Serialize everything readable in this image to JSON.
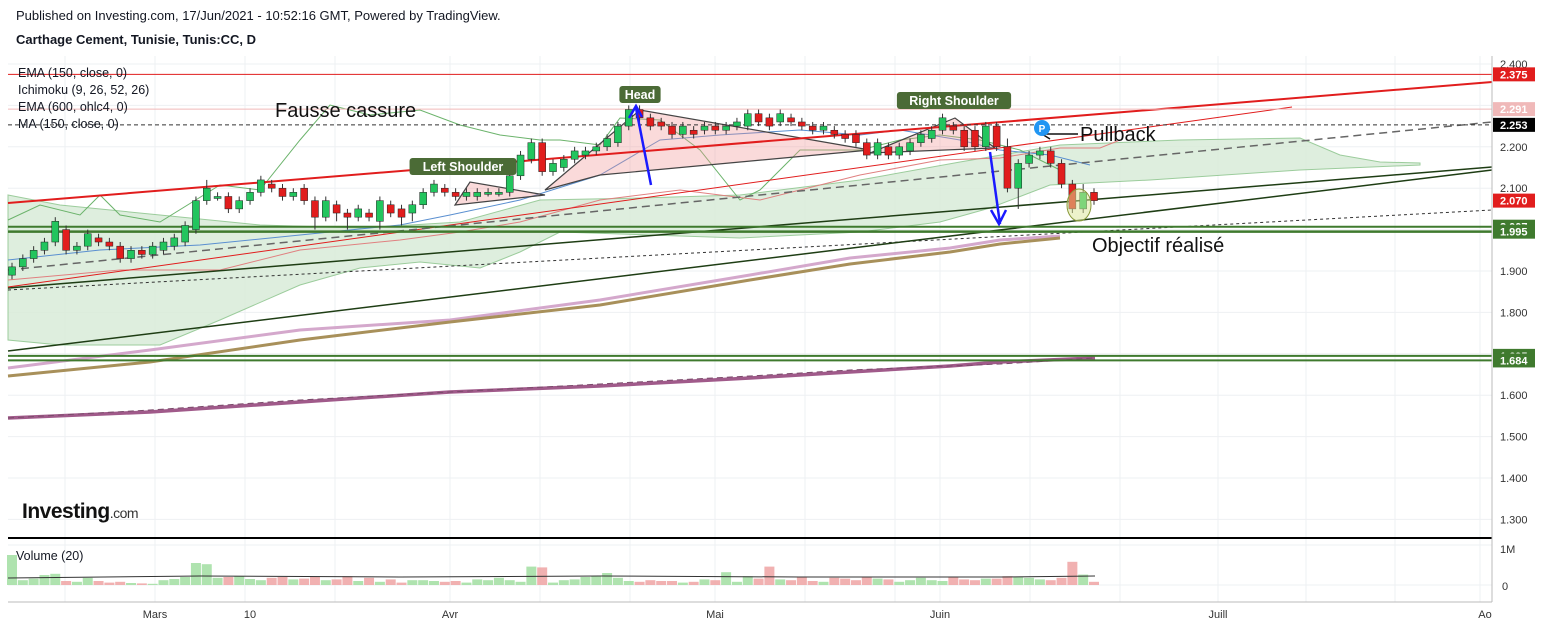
{
  "header": {
    "published": "Published on Investing.com, 17/Jun/2021 - 10:52:16 GMT, Powered by TradingView.",
    "symbol": "Carthage Cement, Tunisie, Tunis:CC, D"
  },
  "indicators": [
    "EMA (150, close, 0)",
    "Ichimoku (9, 26, 52, 26)",
    "EMA (600, ohlc4, 0)",
    "MA (150, close, 0)"
  ],
  "volume_label": "Volume (20)",
  "logo": {
    "main": "Investing",
    "suffix": ".com"
  },
  "annotations": {
    "fausse_cassure": "Fausse cassure",
    "left_shoulder": "Left Shoulder",
    "head": "Head",
    "right_shoulder": "Right Shoulder",
    "pullback": "Pullback",
    "objectif": "Objectif réalisé",
    "p_marker": "P"
  },
  "colors": {
    "up": "#22c55e",
    "down": "#e11d1d",
    "grid": "#eef0f3",
    "cloud": "#d9ecd9",
    "label_green": "#4b6b36",
    "hline_green": "#3f7a2e"
  },
  "chart_data": {
    "type": "candlestick",
    "ylim": [
      1.25,
      2.4
    ],
    "price_ticks": [
      "2.400",
      "2.200",
      "2.100",
      "1.900",
      "1.800",
      "1.600",
      "1.500",
      "1.400",
      "1.300"
    ],
    "volume_ticks": [
      "1M",
      "0"
    ],
    "x_labels": [
      "Mars",
      "10",
      "Avr",
      "Mai",
      "Juin",
      "Juill",
      "Ao"
    ],
    "price_labels": [
      {
        "text": "2.375",
        "value": 2.375,
        "color": "#e11d1d"
      },
      {
        "text": "2.291",
        "value": 2.291,
        "color": "#f0b9b9"
      },
      {
        "text": "2.253",
        "value": 2.253,
        "color": "#000000"
      },
      {
        "text": "2.070",
        "value": 2.07,
        "color": "#e11d1d"
      },
      {
        "text": "2.007",
        "value": 2.007,
        "color": "#3f7a2e"
      },
      {
        "text": "1.995",
        "value": 1.995,
        "color": "#3f7a2e"
      },
      {
        "text": "1.695",
        "value": 1.695,
        "color": "#3f7a2e"
      },
      {
        "text": "1.684",
        "value": 1.684,
        "color": "#3f7a2e"
      }
    ],
    "candles": [
      [
        1.89,
        1.91,
        1.88,
        1.92
      ],
      [
        1.91,
        1.93,
        1.9,
        1.94
      ],
      [
        1.93,
        1.95,
        1.92,
        1.96
      ],
      [
        1.95,
        1.97,
        1.94,
        1.98
      ],
      [
        1.97,
        2.02,
        1.96,
        2.03
      ],
      [
        2.0,
        1.95,
        1.94,
        2.01
      ],
      [
        1.95,
        1.96,
        1.94,
        1.97
      ],
      [
        1.96,
        1.99,
        1.95,
        2.0
      ],
      [
        1.98,
        1.97,
        1.96,
        1.99
      ],
      [
        1.97,
        1.96,
        1.95,
        1.98
      ],
      [
        1.96,
        1.93,
        1.92,
        1.97
      ],
      [
        1.93,
        1.95,
        1.92,
        1.96
      ],
      [
        1.95,
        1.94,
        1.93,
        1.96
      ],
      [
        1.94,
        1.96,
        1.93,
        1.97
      ],
      [
        1.95,
        1.97,
        1.94,
        1.98
      ],
      [
        1.96,
        1.98,
        1.95,
        1.99
      ],
      [
        1.97,
        2.01,
        1.96,
        2.02
      ],
      [
        2.0,
        2.07,
        1.99,
        2.08
      ],
      [
        2.07,
        2.1,
        2.06,
        2.12
      ],
      [
        2.08,
        2.08,
        2.07,
        2.09
      ],
      [
        2.08,
        2.05,
        2.04,
        2.09
      ],
      [
        2.05,
        2.07,
        2.04,
        2.08
      ],
      [
        2.07,
        2.09,
        2.06,
        2.1
      ],
      [
        2.09,
        2.12,
        2.08,
        2.13
      ],
      [
        2.11,
        2.1,
        2.09,
        2.12
      ],
      [
        2.1,
        2.08,
        2.07,
        2.11
      ],
      [
        2.08,
        2.09,
        2.07,
        2.1
      ],
      [
        2.1,
        2.07,
        2.06,
        2.11
      ],
      [
        2.07,
        2.03,
        2.0,
        2.08
      ],
      [
        2.03,
        2.07,
        2.02,
        2.08
      ],
      [
        2.06,
        2.04,
        2.02,
        2.07
      ],
      [
        2.04,
        2.03,
        2.0,
        2.05
      ],
      [
        2.03,
        2.05,
        2.02,
        2.06
      ],
      [
        2.04,
        2.03,
        2.02,
        2.05
      ],
      [
        2.02,
        2.07,
        2.0,
        2.08
      ],
      [
        2.06,
        2.04,
        2.03,
        2.07
      ],
      [
        2.05,
        2.03,
        2.01,
        2.06
      ],
      [
        2.04,
        2.06,
        2.02,
        2.07
      ],
      [
        2.06,
        2.09,
        2.05,
        2.1
      ],
      [
        2.09,
        2.11,
        2.08,
        2.12
      ],
      [
        2.1,
        2.09,
        2.08,
        2.11
      ],
      [
        2.09,
        2.08,
        2.07,
        2.1
      ],
      [
        2.08,
        2.09,
        2.07,
        2.1
      ],
      [
        2.08,
        2.09,
        2.07,
        2.1
      ],
      [
        2.09,
        2.09,
        2.08,
        2.1
      ],
      [
        2.09,
        2.09,
        2.08,
        2.1
      ],
      [
        2.09,
        2.13,
        2.08,
        2.14
      ],
      [
        2.13,
        2.18,
        2.12,
        2.19
      ],
      [
        2.17,
        2.21,
        2.16,
        2.22
      ],
      [
        2.21,
        2.14,
        2.13,
        2.22
      ],
      [
        2.14,
        2.16,
        2.13,
        2.17
      ],
      [
        2.15,
        2.17,
        2.14,
        2.18
      ],
      [
        2.17,
        2.19,
        2.16,
        2.2
      ],
      [
        2.18,
        2.19,
        2.17,
        2.2
      ],
      [
        2.19,
        2.2,
        2.18,
        2.21
      ],
      [
        2.2,
        2.22,
        2.19,
        2.23
      ],
      [
        2.21,
        2.25,
        2.2,
        2.26
      ],
      [
        2.25,
        2.29,
        2.24,
        2.3
      ],
      [
        2.29,
        2.27,
        2.26,
        2.3
      ],
      [
        2.27,
        2.25,
        2.24,
        2.28
      ],
      [
        2.26,
        2.25,
        2.24,
        2.27
      ],
      [
        2.25,
        2.23,
        2.22,
        2.26
      ],
      [
        2.23,
        2.25,
        2.22,
        2.26
      ],
      [
        2.24,
        2.23,
        2.22,
        2.25
      ],
      [
        2.24,
        2.25,
        2.23,
        2.26
      ],
      [
        2.25,
        2.24,
        2.23,
        2.26
      ],
      [
        2.24,
        2.25,
        2.23,
        2.26
      ],
      [
        2.25,
        2.26,
        2.24,
        2.27
      ],
      [
        2.25,
        2.28,
        2.24,
        2.29
      ],
      [
        2.28,
        2.26,
        2.25,
        2.29
      ],
      [
        2.27,
        2.25,
        2.24,
        2.28
      ],
      [
        2.26,
        2.28,
        2.25,
        2.29
      ],
      [
        2.27,
        2.26,
        2.25,
        2.28
      ],
      [
        2.26,
        2.25,
        2.24,
        2.27
      ],
      [
        2.25,
        2.24,
        2.23,
        2.26
      ],
      [
        2.24,
        2.25,
        2.23,
        2.26
      ],
      [
        2.24,
        2.23,
        2.22,
        2.25
      ],
      [
        2.23,
        2.22,
        2.21,
        2.24
      ],
      [
        2.23,
        2.21,
        2.2,
        2.24
      ],
      [
        2.21,
        2.18,
        2.17,
        2.22
      ],
      [
        2.18,
        2.21,
        2.17,
        2.22
      ],
      [
        2.2,
        2.18,
        2.17,
        2.21
      ],
      [
        2.18,
        2.2,
        2.17,
        2.21
      ],
      [
        2.19,
        2.21,
        2.18,
        2.22
      ],
      [
        2.21,
        2.23,
        2.2,
        2.24
      ],
      [
        2.22,
        2.24,
        2.21,
        2.25
      ],
      [
        2.24,
        2.27,
        2.23,
        2.28
      ],
      [
        2.25,
        2.24,
        2.23,
        2.26
      ],
      [
        2.24,
        2.2,
        2.19,
        2.25
      ],
      [
        2.24,
        2.2,
        2.19,
        2.25
      ],
      [
        2.2,
        2.25,
        2.19,
        2.26
      ],
      [
        2.25,
        2.2,
        2.19,
        2.26
      ],
      [
        2.2,
        2.1,
        2.09,
        2.22
      ],
      [
        2.1,
        2.16,
        2.05,
        2.17
      ],
      [
        2.16,
        2.18,
        2.15,
        2.19
      ],
      [
        2.18,
        2.19,
        2.17,
        2.2
      ],
      [
        2.19,
        2.16,
        2.15,
        2.2
      ],
      [
        2.16,
        2.11,
        2.1,
        2.17
      ],
      [
        2.11,
        2.05,
        2.04,
        2.12
      ],
      [
        2.05,
        2.09,
        2.04,
        2.11
      ],
      [
        2.09,
        2.07,
        2.06,
        2.1
      ]
    ],
    "volume_values": [
      0.75,
      0.12,
      0.16,
      0.25,
      0.28,
      0.1,
      0.08,
      0.18,
      0.1,
      0.06,
      0.08,
      0.05,
      0.04,
      0.03,
      0.12,
      0.15,
      0.2,
      0.55,
      0.52,
      0.18,
      0.2,
      0.22,
      0.15,
      0.12,
      0.18,
      0.2,
      0.14,
      0.16,
      0.2,
      0.12,
      0.14,
      0.22,
      0.1,
      0.18,
      0.08,
      0.14,
      0.06,
      0.12,
      0.12,
      0.1,
      0.08,
      0.1,
      0.06,
      0.14,
      0.12,
      0.18,
      0.12,
      0.08,
      0.46,
      0.44,
      0.06,
      0.12,
      0.14,
      0.2,
      0.22,
      0.3,
      0.18,
      0.1,
      0.08,
      0.12,
      0.1,
      0.1,
      0.06,
      0.08,
      0.14,
      0.12,
      0.32,
      0.08,
      0.22,
      0.16,
      0.46,
      0.14,
      0.12,
      0.2,
      0.1,
      0.08,
      0.18,
      0.16,
      0.12,
      0.2,
      0.16,
      0.14,
      0.08,
      0.12,
      0.18,
      0.12,
      0.1,
      0.2,
      0.14,
      0.12,
      0.16,
      0.16,
      0.22,
      0.2,
      0.18,
      0.14,
      0.12,
      0.18,
      0.58,
      0.26,
      0.08
    ]
  }
}
